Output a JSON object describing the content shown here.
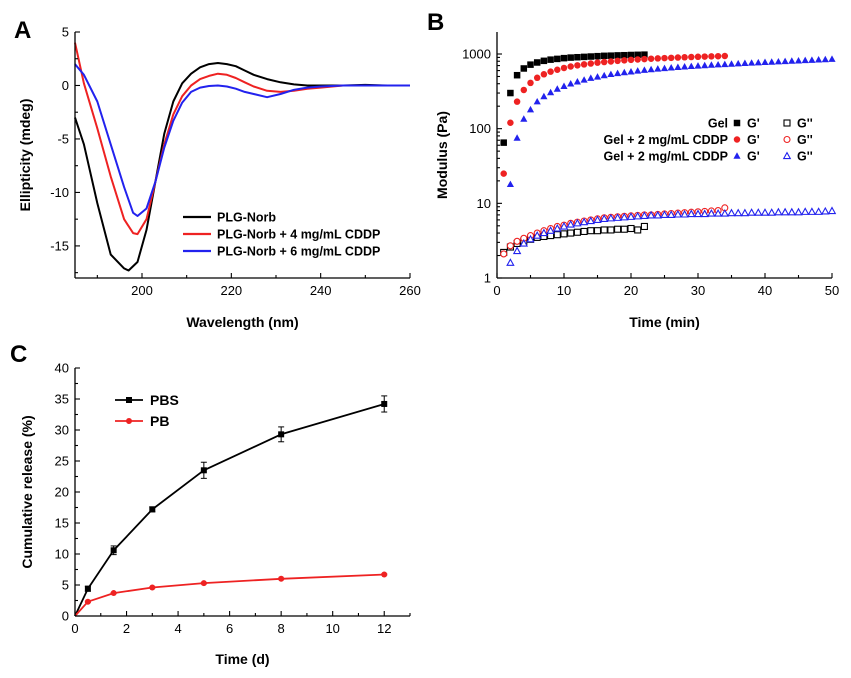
{
  "chart_data": [
    {
      "panel": "A",
      "type": "line",
      "xlabel": "Wavelength (nm)",
      "ylabel": "Ellipticity (mdeg)",
      "xlim": [
        185,
        260
      ],
      "ylim": [
        -18,
        5
      ],
      "xticks": [
        200,
        220,
        240,
        260
      ],
      "yticks": [
        -15,
        -10,
        -5,
        0,
        5
      ],
      "legend_position": "bottom-right",
      "series": [
        {
          "name": "PLG-Norb",
          "color": "#000000",
          "x": [
            185,
            187,
            190,
            193,
            196,
            197,
            199,
            201,
            203,
            205,
            207,
            209,
            211,
            213,
            215,
            217,
            219,
            221,
            223,
            225,
            228,
            231,
            234,
            237,
            240,
            245,
            250,
            255,
            260
          ],
          "y": [
            -3.0,
            -5.5,
            -11.0,
            -15.8,
            -17.1,
            -17.3,
            -16.5,
            -13.5,
            -9.0,
            -4.5,
            -1.5,
            0.2,
            1.1,
            1.7,
            2.0,
            2.1,
            2.0,
            1.8,
            1.4,
            1.0,
            0.6,
            0.3,
            0.1,
            0.0,
            0.0,
            0.0,
            0.05,
            0.0,
            0.0
          ]
        },
        {
          "name": "PLG-Norb + 4 mg/mL CDDP",
          "color": "#ee2222",
          "x": [
            185,
            187,
            190,
            193,
            196,
            198,
            199,
            201,
            203,
            205,
            207,
            209,
            211,
            213,
            215,
            217,
            219,
            221,
            223,
            225,
            228,
            231,
            234,
            237,
            240,
            245,
            250,
            255,
            260
          ],
          "y": [
            4.0,
            0.2,
            -4.0,
            -8.5,
            -12.5,
            -13.8,
            -13.9,
            -12.5,
            -9.0,
            -5.5,
            -2.7,
            -1.0,
            0.0,
            0.6,
            0.9,
            1.1,
            1.0,
            0.7,
            0.3,
            -0.1,
            -0.5,
            -0.6,
            -0.5,
            -0.3,
            -0.2,
            0.0,
            0.0,
            0.0,
            0.0
          ]
        },
        {
          "name": "PLG-Norb + 6 mg/mL CDDP",
          "color": "#2222ee",
          "x": [
            185,
            187,
            190,
            193,
            196,
            198,
            199,
            201,
            203,
            205,
            207,
            209,
            211,
            213,
            215,
            217,
            219,
            221,
            223,
            225,
            228,
            231,
            234,
            237,
            240,
            245,
            250,
            255,
            260
          ],
          "y": [
            2.0,
            1.0,
            -1.5,
            -5.5,
            -9.5,
            -11.9,
            -12.2,
            -11.5,
            -9.0,
            -5.8,
            -3.3,
            -1.6,
            -0.6,
            -0.2,
            -0.05,
            0.0,
            -0.1,
            -0.3,
            -0.6,
            -0.8,
            -1.1,
            -0.8,
            -0.4,
            -0.2,
            -0.1,
            0.0,
            0.0,
            0.0,
            0.0
          ]
        }
      ]
    },
    {
      "panel": "B",
      "type": "scatter",
      "xlabel": "Time (min)",
      "ylabel": "Modulus (Pa)",
      "xscale": "linear",
      "yscale": "log",
      "xlim": [
        0,
        50
      ],
      "ylim": [
        1,
        1500
      ],
      "xticks": [
        0,
        10,
        20,
        30,
        40,
        50
      ],
      "yticks": [
        1,
        10,
        100,
        1000
      ],
      "legend_position": "middle-right",
      "legend_col_gp": "G'",
      "legend_col_gpp": "G''",
      "series": [
        {
          "name": "Gel",
          "kind": "G'",
          "color": "#000000",
          "marker": "square",
          "filled": true,
          "x": [
            1,
            2,
            3,
            4,
            5,
            6,
            7,
            8,
            9,
            10,
            11,
            12,
            13,
            14,
            15,
            16,
            17,
            18,
            19,
            20,
            21,
            22
          ],
          "y": [
            65,
            300,
            520,
            640,
            720,
            770,
            810,
            840,
            860,
            880,
            895,
            905,
            915,
            925,
            935,
            945,
            950,
            958,
            963,
            970,
            975,
            980
          ]
        },
        {
          "name": "Gel",
          "kind": "G''",
          "color": "#000000",
          "marker": "square",
          "filled": false,
          "x": [
            1,
            2,
            3,
            4,
            5,
            6,
            7,
            8,
            9,
            10,
            11,
            12,
            13,
            14,
            15,
            16,
            17,
            18,
            19,
            20,
            21,
            22
          ],
          "y": [
            2.2,
            2.6,
            2.9,
            3.1,
            3.3,
            3.5,
            3.6,
            3.7,
            3.8,
            3.9,
            4.0,
            4.1,
            4.2,
            4.3,
            4.3,
            4.4,
            4.4,
            4.5,
            4.5,
            4.6,
            4.4,
            4.9
          ]
        },
        {
          "name": "Gel + 2 mg/mL CDDP",
          "kind": "G'",
          "color": "#ee2222",
          "marker": "circle",
          "filled": true,
          "x": [
            1,
            2,
            3,
            4,
            5,
            6,
            7,
            8,
            9,
            10,
            11,
            12,
            13,
            14,
            15,
            16,
            17,
            18,
            19,
            20,
            21,
            22,
            23,
            24,
            25,
            26,
            27,
            28,
            29,
            30,
            31,
            32,
            33,
            34
          ],
          "y": [
            25,
            120,
            230,
            330,
            410,
            480,
            535,
            580,
            615,
            650,
            680,
            705,
            725,
            745,
            765,
            780,
            795,
            810,
            822,
            835,
            845,
            855,
            865,
            873,
            881,
            889,
            896,
            903,
            910,
            917,
            923,
            929,
            934,
            940
          ]
        },
        {
          "name": "Gel + 2 mg/mL CDDP",
          "kind": "G''",
          "color": "#ee2222",
          "marker": "circle",
          "filled": false,
          "x": [
            1,
            2,
            3,
            4,
            5,
            6,
            7,
            8,
            9,
            10,
            11,
            12,
            13,
            14,
            15,
            16,
            17,
            18,
            19,
            20,
            21,
            22,
            23,
            24,
            25,
            26,
            27,
            28,
            29,
            30,
            31,
            32,
            33,
            34
          ],
          "y": [
            2.1,
            2.7,
            3.1,
            3.4,
            3.7,
            4.0,
            4.3,
            4.6,
            4.9,
            5.1,
            5.4,
            5.6,
            5.8,
            6.0,
            6.2,
            6.4,
            6.5,
            6.6,
            6.7,
            6.8,
            6.9,
            7.0,
            7.0,
            7.1,
            7.2,
            7.3,
            7.4,
            7.5,
            7.6,
            7.7,
            7.8,
            7.9,
            8.0,
            8.7
          ]
        },
        {
          "name": "Gel + 2 mg/mL CDDP",
          "kind": "G'",
          "color": "#2222ee",
          "marker": "triangle",
          "filled": true,
          "x": [
            2,
            3,
            4,
            5,
            6,
            7,
            8,
            9,
            10,
            11,
            12,
            13,
            14,
            15,
            16,
            17,
            18,
            19,
            20,
            21,
            22,
            23,
            24,
            25,
            26,
            27,
            28,
            29,
            30,
            31,
            32,
            33,
            34,
            35,
            36,
            37,
            38,
            39,
            40,
            41,
            42,
            43,
            44,
            45,
            46,
            47,
            48,
            49,
            50
          ],
          "y": [
            18,
            75,
            135,
            180,
            230,
            270,
            305,
            340,
            370,
            400,
            425,
            450,
            475,
            495,
            515,
            535,
            550,
            565,
            580,
            595,
            608,
            620,
            632,
            643,
            655,
            665,
            675,
            685,
            694,
            703,
            712,
            720,
            728,
            736,
            744,
            752,
            760,
            768,
            775,
            782,
            790,
            798,
            806,
            814,
            822,
            830,
            838,
            845,
            855
          ]
        },
        {
          "name": "Gel + 2 mg/mL CDDP",
          "kind": "G''",
          "color": "#2222ee",
          "marker": "triangle",
          "filled": false,
          "x": [
            2,
            3,
            4,
            5,
            6,
            7,
            8,
            9,
            10,
            11,
            12,
            13,
            14,
            15,
            16,
            17,
            18,
            19,
            20,
            21,
            22,
            23,
            24,
            25,
            26,
            27,
            28,
            29,
            30,
            31,
            32,
            33,
            34,
            35,
            36,
            37,
            38,
            39,
            40,
            41,
            42,
            43,
            44,
            45,
            46,
            47,
            48,
            49,
            50
          ],
          "y": [
            1.6,
            2.3,
            2.9,
            3.3,
            3.7,
            4.0,
            4.3,
            4.6,
            4.9,
            5.2,
            5.4,
            5.6,
            5.8,
            6.0,
            6.2,
            6.3,
            6.4,
            6.5,
            6.6,
            6.7,
            6.8,
            6.9,
            6.9,
            7.0,
            7.0,
            7.1,
            7.1,
            7.2,
            7.2,
            7.2,
            7.3,
            7.3,
            7.3,
            7.4,
            7.4,
            7.4,
            7.5,
            7.5,
            7.5,
            7.5,
            7.6,
            7.6,
            7.6,
            7.6,
            7.7,
            7.7,
            7.7,
            7.8,
            7.9
          ]
        }
      ]
    },
    {
      "panel": "C",
      "type": "line",
      "xlabel": "Time (d)",
      "ylabel": "Cumulative release (%)",
      "xlim": [
        0,
        13
      ],
      "ylim": [
        0,
        40
      ],
      "xticks": [
        0,
        2,
        4,
        6,
        8,
        10,
        12
      ],
      "yticks": [
        0,
        5,
        10,
        15,
        20,
        25,
        30,
        35,
        40
      ],
      "legend_position": "top-left",
      "series": [
        {
          "name": "PBS",
          "color": "#000000",
          "marker": "square",
          "x": [
            0,
            0.5,
            1.5,
            3,
            5,
            8,
            12
          ],
          "y": [
            0,
            4.4,
            10.6,
            17.2,
            23.5,
            29.3,
            34.2
          ],
          "err": [
            0,
            0.4,
            0.7,
            0.4,
            1.3,
            1.2,
            1.3
          ]
        },
        {
          "name": "PB",
          "color": "#ee2222",
          "marker": "circle",
          "x": [
            0,
            0.5,
            1.5,
            3,
            5,
            8,
            12
          ],
          "y": [
            0,
            2.3,
            3.7,
            4.6,
            5.3,
            6.0,
            6.7
          ],
          "err": [
            0,
            0.1,
            0.1,
            0.1,
            0.1,
            0.1,
            0.1
          ]
        }
      ]
    }
  ]
}
